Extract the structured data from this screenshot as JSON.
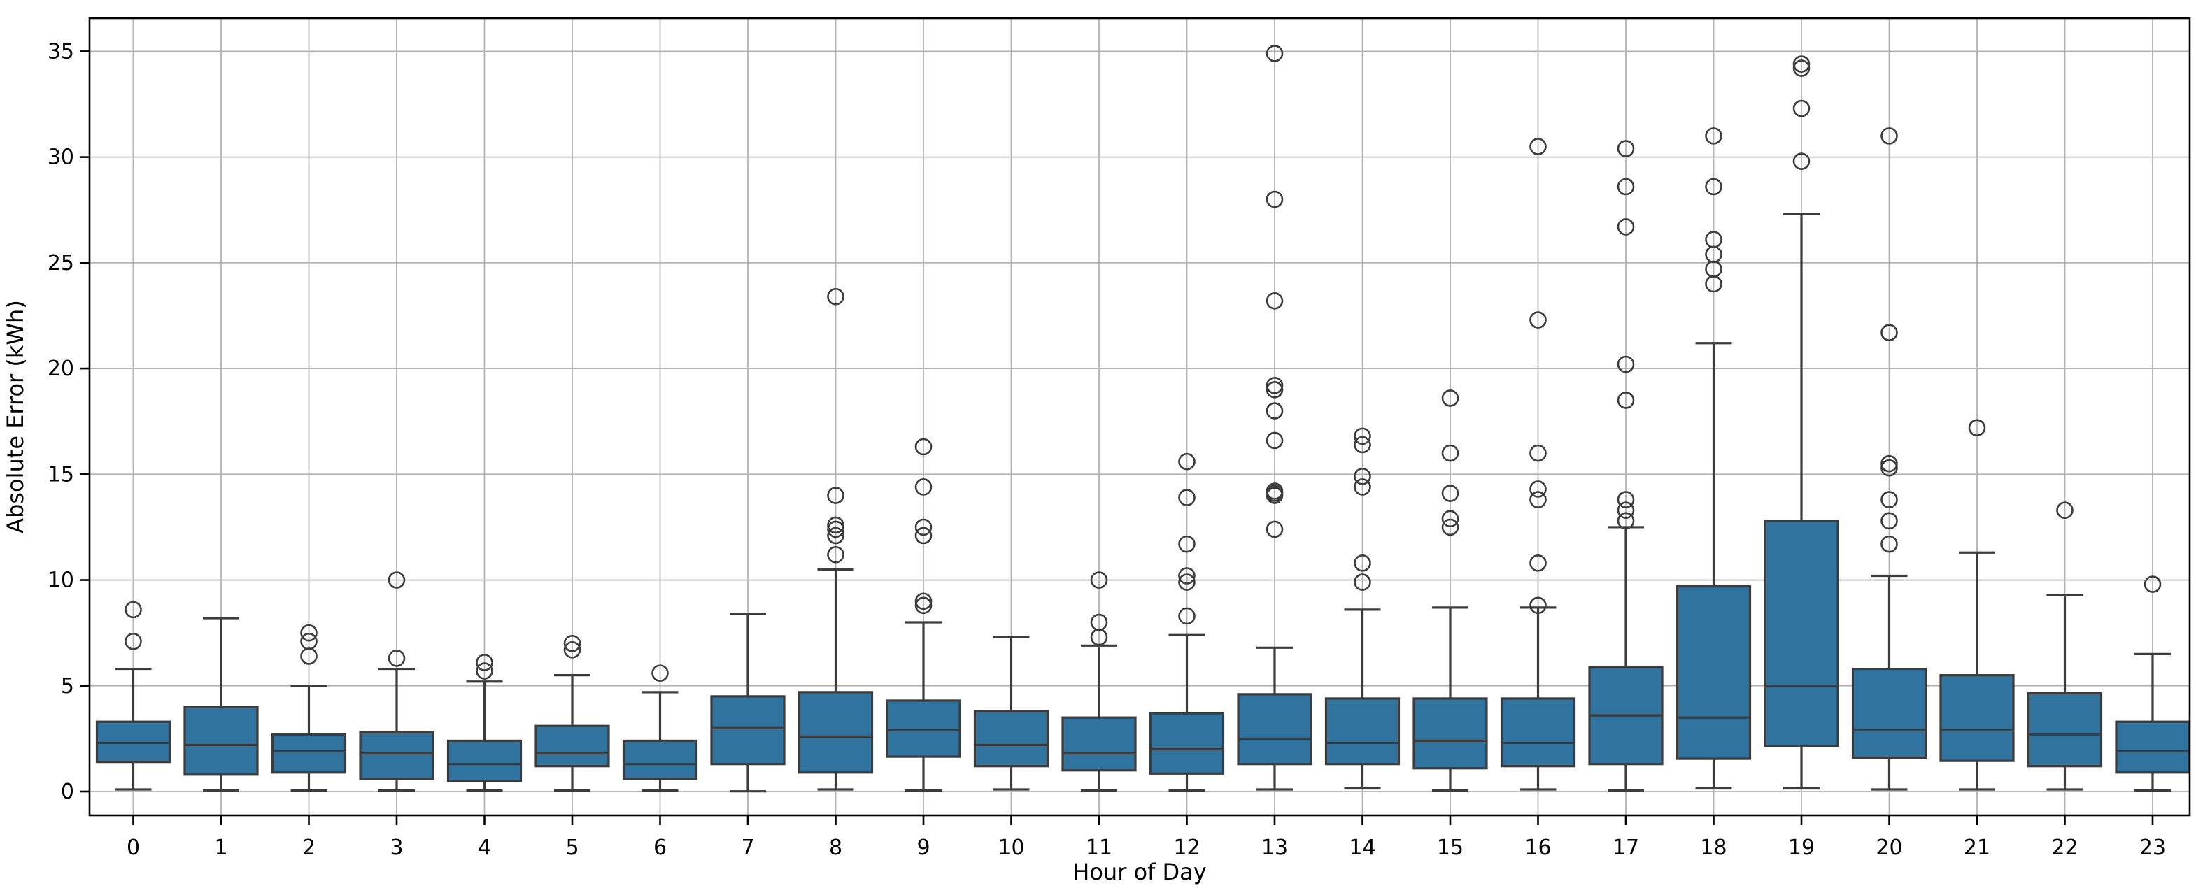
{
  "page": {
    "background": "#FFFFFF"
  },
  "chart_data": {
    "type": "boxplot",
    "title": "",
    "xlabel": "Hour of Day",
    "ylabel": "Absolute Error (kWh)",
    "categories": [
      "0",
      "1",
      "2",
      "3",
      "4",
      "5",
      "6",
      "7",
      "8",
      "9",
      "10",
      "11",
      "12",
      "13",
      "14",
      "15",
      "16",
      "17",
      "18",
      "19",
      "20",
      "21",
      "22",
      "23"
    ],
    "yticks": [
      0,
      5,
      10,
      15,
      20,
      25,
      30,
      35
    ],
    "ylim": [
      -1.12,
      36.57
    ],
    "grid": true,
    "legend": "none",
    "colors": {
      "box_fill": "#31739F",
      "box_edge": "#3C3C3C",
      "whisker": "#3C3C3C",
      "median": "#3C3C3C",
      "flier_edge": "#3C3C3C",
      "grid": "#B3B3B3",
      "spine": "#000000",
      "tick_text": "#000000"
    },
    "boxes": [
      {
        "hour": "0",
        "whislo": 0.1,
        "q1": 1.4,
        "med": 2.3,
        "q3": 3.3,
        "whishi": 5.8,
        "fliers": [
          7.1,
          8.6
        ]
      },
      {
        "hour": "1",
        "whislo": 0.05,
        "q1": 0.8,
        "med": 2.2,
        "q3": 4.0,
        "whishi": 8.2,
        "fliers": []
      },
      {
        "hour": "2",
        "whislo": 0.05,
        "q1": 0.9,
        "med": 1.9,
        "q3": 2.7,
        "whishi": 5.0,
        "fliers": [
          6.4,
          7.1,
          7.5
        ]
      },
      {
        "hour": "3",
        "whislo": 0.05,
        "q1": 0.6,
        "med": 1.8,
        "q3": 2.8,
        "whishi": 5.8,
        "fliers": [
          6.3,
          10.0
        ]
      },
      {
        "hour": "4",
        "whislo": 0.05,
        "q1": 0.5,
        "med": 1.3,
        "q3": 2.4,
        "whishi": 5.2,
        "fliers": [
          5.7,
          6.1
        ]
      },
      {
        "hour": "5",
        "whislo": 0.05,
        "q1": 1.2,
        "med": 1.8,
        "q3": 3.1,
        "whishi": 5.5,
        "fliers": [
          6.7,
          7.0
        ]
      },
      {
        "hour": "6",
        "whislo": 0.05,
        "q1": 0.6,
        "med": 1.3,
        "q3": 2.4,
        "whishi": 4.7,
        "fliers": [
          5.6
        ]
      },
      {
        "hour": "7",
        "whislo": 0.01,
        "q1": 1.3,
        "med": 3.0,
        "q3": 4.5,
        "whishi": 8.4,
        "fliers": []
      },
      {
        "hour": "8",
        "whislo": 0.1,
        "q1": 0.9,
        "med": 2.6,
        "q3": 4.7,
        "whishi": 10.5,
        "fliers": [
          11.2,
          12.1,
          12.4,
          12.6,
          14.0,
          23.4
        ]
      },
      {
        "hour": "9",
        "whislo": 0.05,
        "q1": 1.65,
        "med": 2.9,
        "q3": 4.3,
        "whishi": 8.0,
        "fliers": [
          8.8,
          9.0,
          12.1,
          12.5,
          14.4,
          16.3
        ]
      },
      {
        "hour": "10",
        "whislo": 0.1,
        "q1": 1.2,
        "med": 2.2,
        "q3": 3.8,
        "whishi": 7.3,
        "fliers": []
      },
      {
        "hour": "11",
        "whislo": 0.05,
        "q1": 1.0,
        "med": 1.8,
        "q3": 3.5,
        "whishi": 6.9,
        "fliers": [
          7.3,
          8.0,
          10.0
        ]
      },
      {
        "hour": "12",
        "whislo": 0.05,
        "q1": 0.85,
        "med": 2.0,
        "q3": 3.7,
        "whishi": 7.4,
        "fliers": [
          8.3,
          9.9,
          10.2,
          11.7,
          13.9,
          15.6
        ]
      },
      {
        "hour": "13",
        "whislo": 0.1,
        "q1": 1.3,
        "med": 2.5,
        "q3": 4.6,
        "whishi": 6.8,
        "fliers": [
          12.4,
          14.0,
          14.1,
          14.2,
          16.6,
          18.0,
          19.0,
          19.2,
          23.2,
          28.0,
          34.9
        ]
      },
      {
        "hour": "14",
        "whislo": 0.15,
        "q1": 1.3,
        "med": 2.3,
        "q3": 4.4,
        "whishi": 8.6,
        "fliers": [
          9.9,
          10.8,
          14.4,
          14.9,
          16.4,
          16.8
        ]
      },
      {
        "hour": "15",
        "whislo": 0.05,
        "q1": 1.1,
        "med": 2.4,
        "q3": 4.4,
        "whishi": 8.7,
        "fliers": [
          12.5,
          12.9,
          14.1,
          16.0,
          18.6
        ]
      },
      {
        "hour": "16",
        "whislo": 0.1,
        "q1": 1.2,
        "med": 2.3,
        "q3": 4.4,
        "whishi": 8.7,
        "fliers": [
          8.8,
          10.8,
          13.8,
          14.3,
          16.0,
          22.3,
          30.5
        ]
      },
      {
        "hour": "17",
        "whislo": 0.05,
        "q1": 1.3,
        "med": 3.6,
        "q3": 5.9,
        "whishi": 12.5,
        "fliers": [
          12.8,
          13.3,
          13.8,
          18.5,
          20.2,
          26.7,
          28.6,
          30.4
        ]
      },
      {
        "hour": "18",
        "whislo": 0.15,
        "q1": 1.55,
        "med": 3.5,
        "q3": 9.7,
        "whishi": 21.2,
        "fliers": [
          24.0,
          24.7,
          25.4,
          26.1,
          28.6,
          31.0
        ]
      },
      {
        "hour": "19",
        "whislo": 0.15,
        "q1": 2.15,
        "med": 5.0,
        "q3": 12.8,
        "whishi": 27.3,
        "fliers": [
          29.8,
          32.3,
          34.2,
          34.4
        ]
      },
      {
        "hour": "20",
        "whislo": 0.1,
        "q1": 1.6,
        "med": 2.9,
        "q3": 5.8,
        "whishi": 10.2,
        "fliers": [
          11.7,
          12.8,
          13.8,
          15.3,
          15.5,
          21.7,
          31.0
        ]
      },
      {
        "hour": "21",
        "whislo": 0.1,
        "q1": 1.45,
        "med": 2.9,
        "q3": 5.5,
        "whishi": 11.3,
        "fliers": [
          17.2
        ]
      },
      {
        "hour": "22",
        "whislo": 0.1,
        "q1": 1.2,
        "med": 2.7,
        "q3": 4.65,
        "whishi": 9.3,
        "fliers": [
          13.3
        ]
      },
      {
        "hour": "23",
        "whislo": 0.05,
        "q1": 0.9,
        "med": 1.9,
        "q3": 3.3,
        "whishi": 6.5,
        "fliers": [
          9.8
        ]
      }
    ]
  }
}
